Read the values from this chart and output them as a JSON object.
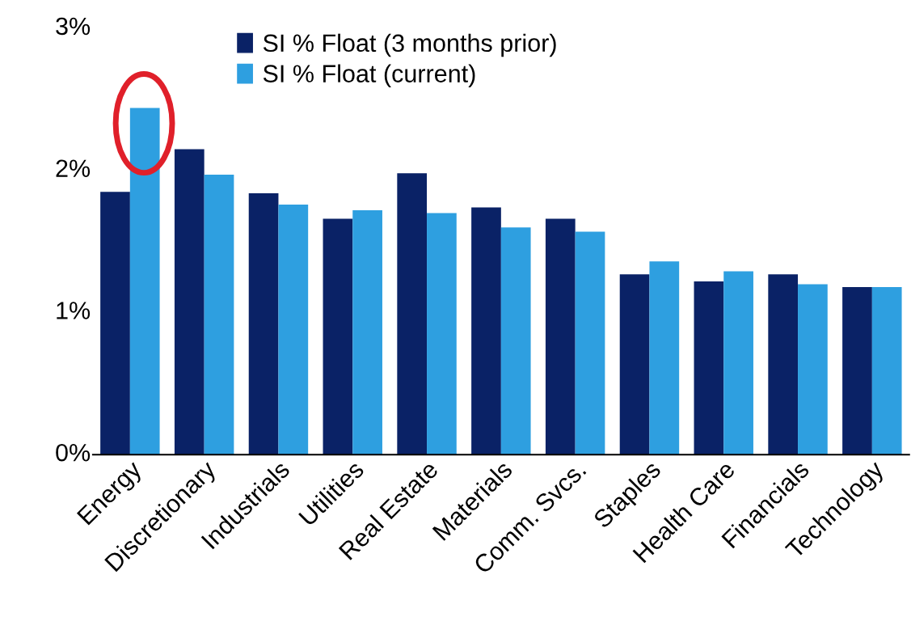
{
  "chart_data": {
    "type": "bar",
    "categories": [
      "Energy",
      "Discretionary",
      "Industrials",
      "Utilities",
      "Real Estate",
      "Materials",
      "Comm. Svcs.",
      "Staples",
      "Health Care",
      "Financials",
      "Technology"
    ],
    "series": [
      {
        "name": "SI % Float (3 months prior)",
        "color": "#0a2266",
        "values": [
          1.85,
          2.15,
          1.84,
          1.66,
          1.98,
          1.74,
          1.66,
          1.27,
          1.22,
          1.27,
          1.18
        ]
      },
      {
        "name": "SI % Float (current)",
        "color": "#2e9fe0",
        "values": [
          2.44,
          1.97,
          1.76,
          1.72,
          1.7,
          1.6,
          1.57,
          1.36,
          1.29,
          1.2,
          1.18
        ]
      }
    ],
    "ylim": [
      0,
      3
    ],
    "yticks": [
      {
        "value": 0,
        "label": "0%"
      },
      {
        "value": 1,
        "label": "1%"
      },
      {
        "value": 2,
        "label": "2%"
      },
      {
        "value": 3,
        "label": "3%"
      }
    ],
    "legend": "top left",
    "grid": false
  }
}
